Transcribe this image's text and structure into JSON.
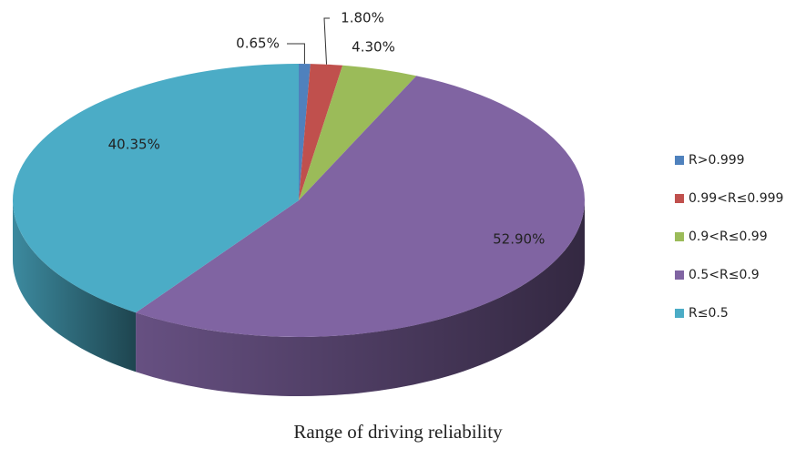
{
  "chart_data": {
    "type": "pie",
    "title": "Range of driving reliability",
    "categories": [
      "R>0.999",
      "0.99<R≤0.999",
      "0.9<R≤0.99",
      "0.5<R≤0.9",
      "R≤0.5"
    ],
    "values": [
      0.65,
      1.8,
      4.3,
      52.9,
      40.35
    ],
    "value_labels": [
      "0.65%",
      "1.80%",
      "4.30%",
      "52.90%",
      "40.35%"
    ],
    "colors": [
      "#4f81bd",
      "#c0504d",
      "#9bbb59",
      "#8064a2",
      "#4bacc6"
    ],
    "legend": "right"
  }
}
